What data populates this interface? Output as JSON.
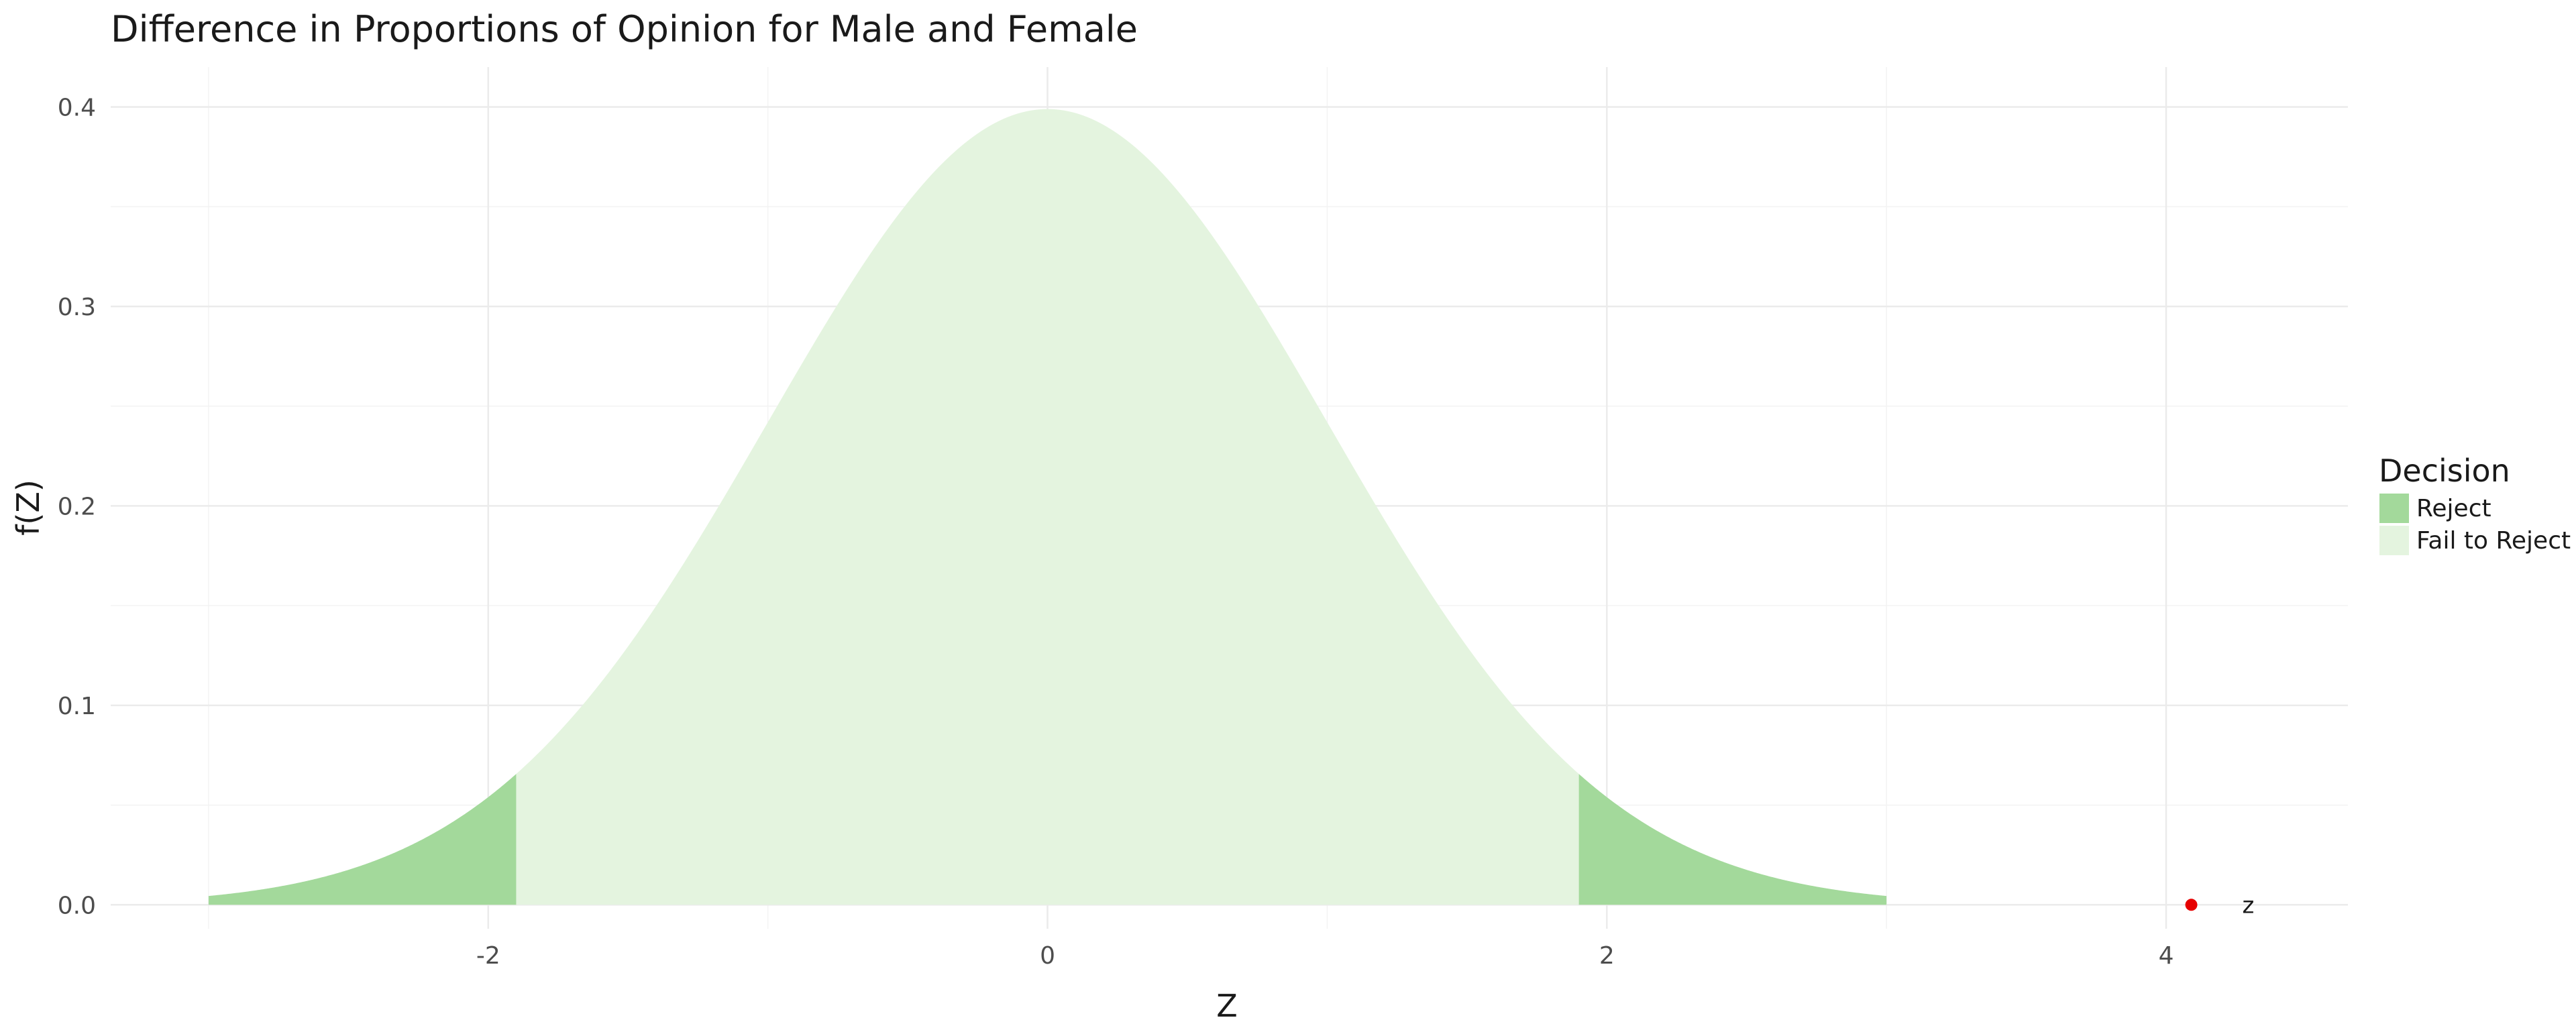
{
  "chart_data": {
    "type": "area",
    "title": "Difference in Proportions of Opinion for Male and Female",
    "xlabel": "Z",
    "ylabel": "f(Z)",
    "xlim": [
      -3.35,
      4.65
    ],
    "ylim": [
      -0.012,
      0.42
    ],
    "x_ticks": [
      -2,
      0,
      2,
      4
    ],
    "x_tick_labels": [
      "-2",
      "0",
      "2",
      "4"
    ],
    "y_ticks": [
      0.0,
      0.1,
      0.2,
      0.3,
      0.4
    ],
    "y_tick_labels": [
      "0.0",
      "0.1",
      "0.2",
      "0.3",
      "0.4"
    ],
    "grid": true,
    "curve": "standard normal density",
    "legend": {
      "title": "Decision",
      "placement": "right",
      "entries": [
        {
          "label": "Reject",
          "color": "#a3d99b"
        },
        {
          "label": "Fail to Reject",
          "color": "#e4f4df"
        }
      ]
    },
    "regions": [
      {
        "decision": "Reject",
        "x_from": -3.0,
        "x_to": -1.9,
        "color": "#a3d99b"
      },
      {
        "decision": "Fail to Reject",
        "x_from": -1.9,
        "x_to": 1.9,
        "color": "#e4f4df"
      },
      {
        "decision": "Reject",
        "x_from": 1.9,
        "x_to": 3.0,
        "color": "#a3d99b"
      }
    ],
    "points": [
      {
        "x": 4.09,
        "y": 0.0,
        "color": "#e60000",
        "label": "z"
      }
    ]
  }
}
